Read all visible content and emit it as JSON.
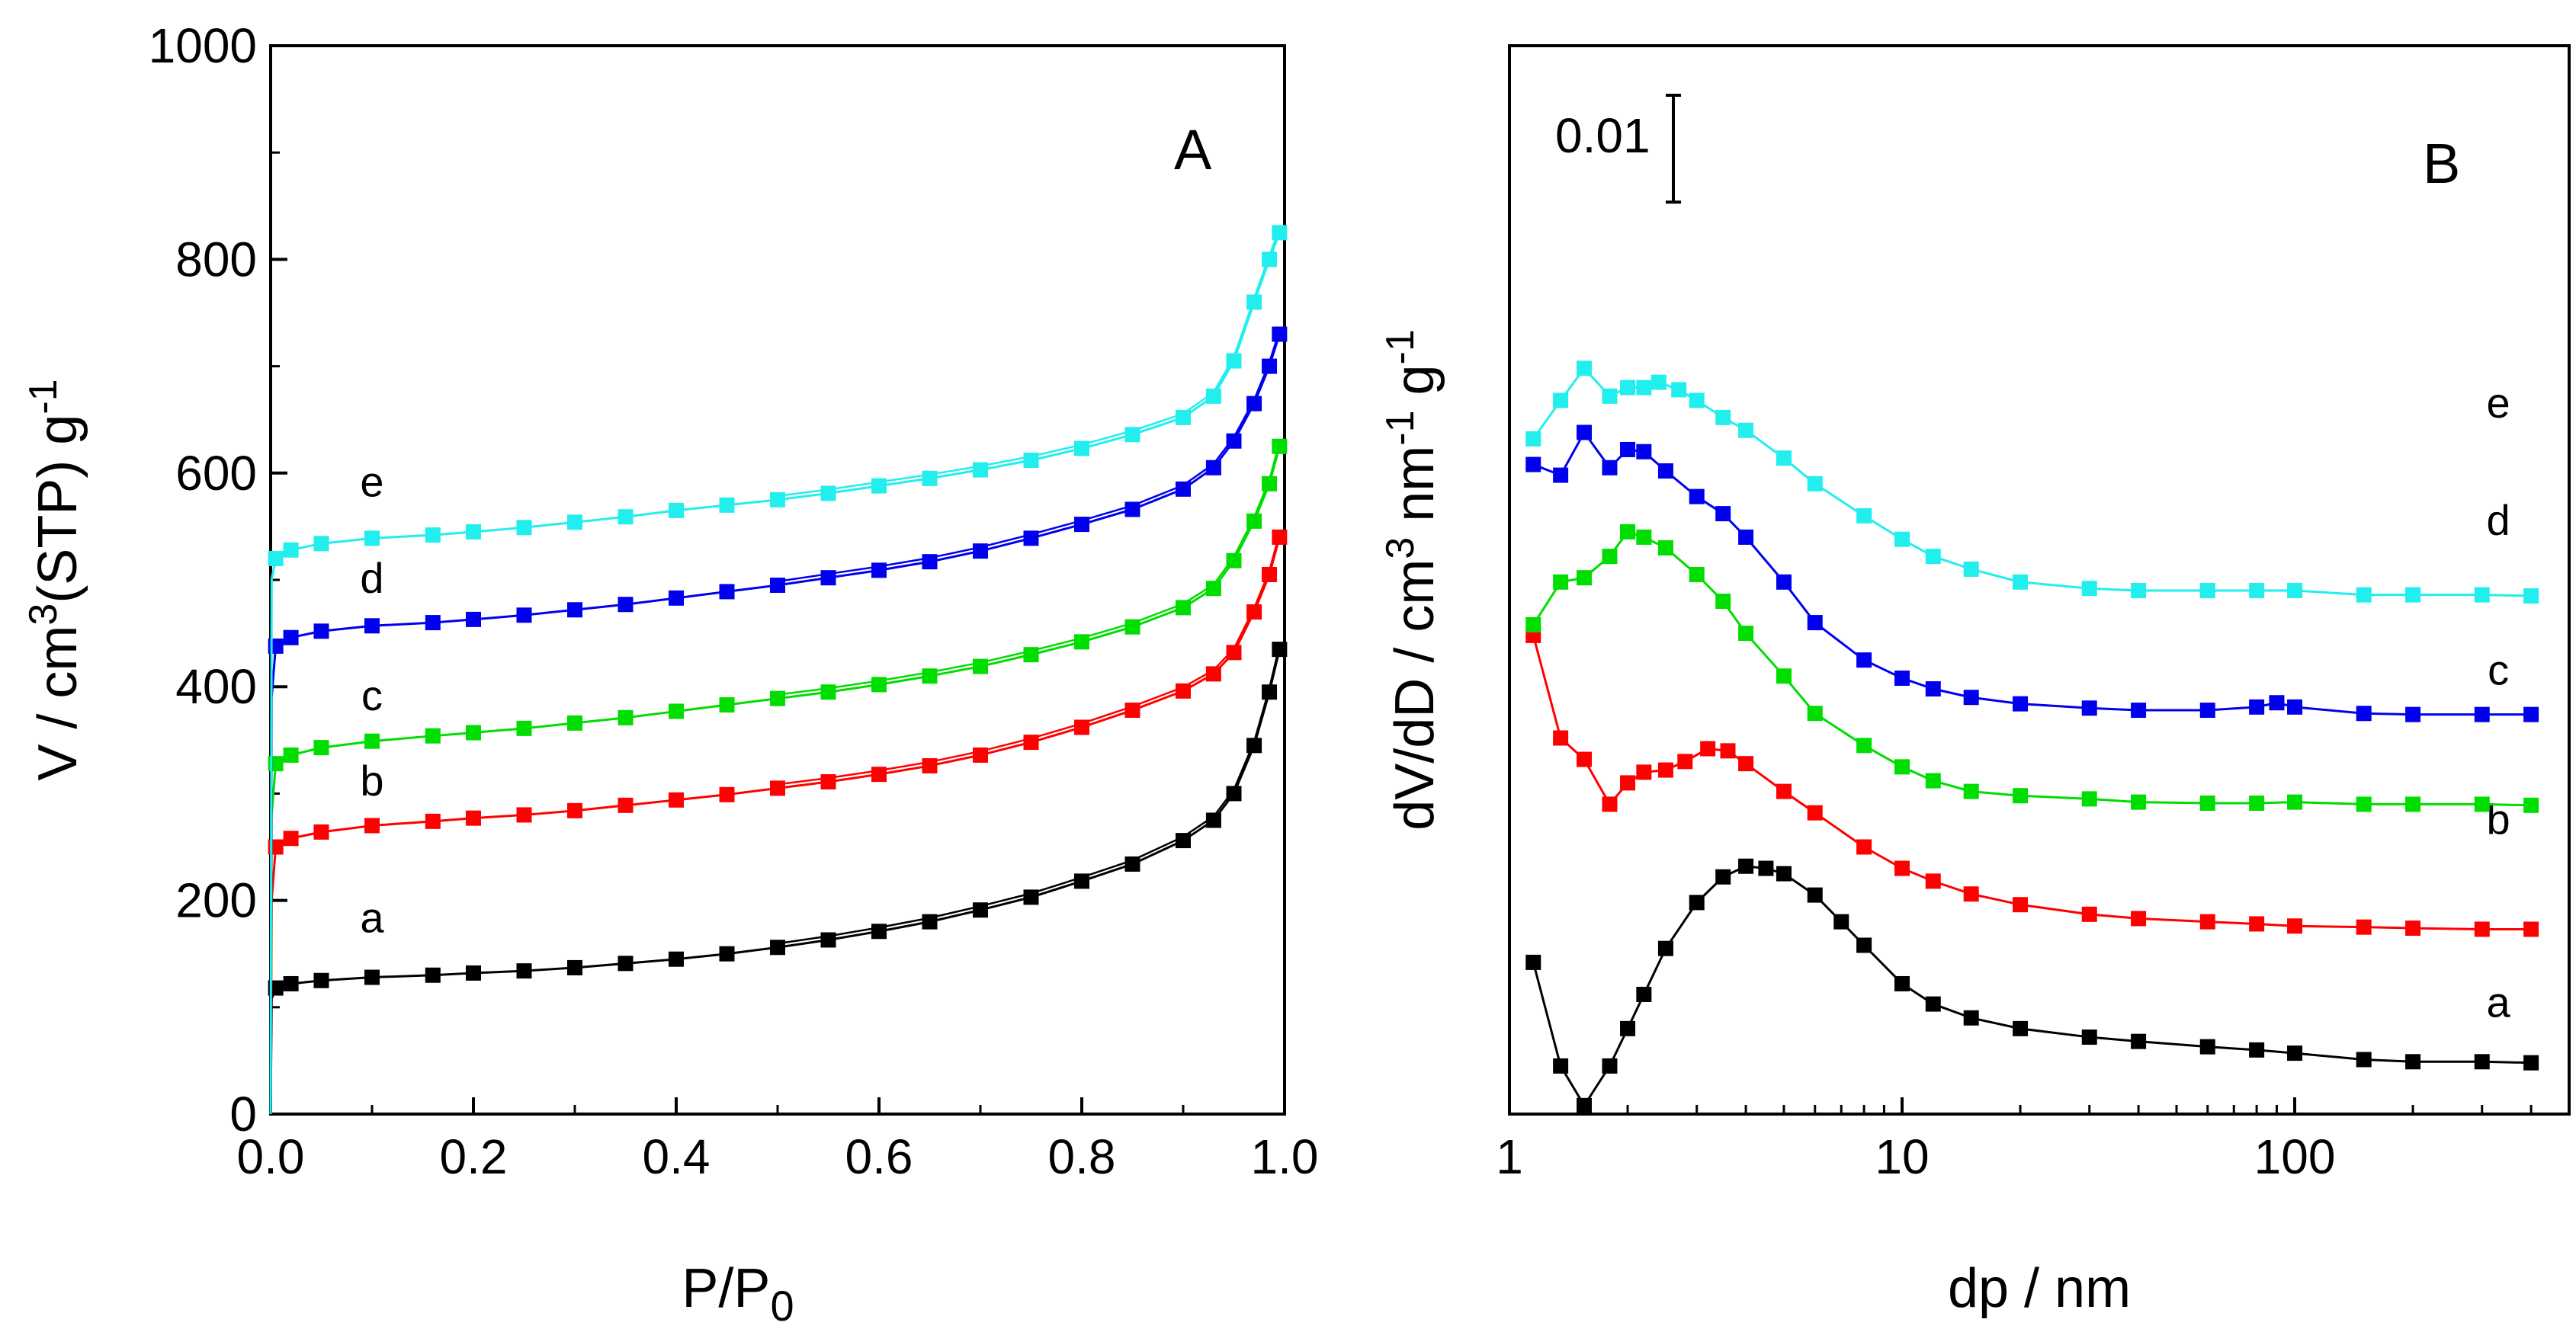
{
  "chart_data": [
    {
      "panel": "A",
      "type": "line",
      "xlabel": "P/P",
      "xlabel_sub": "0",
      "ylabel": "V / cm",
      "ylabel_sup": "3",
      "ylabel_mid": "(STP) g",
      "ylabel_sup2": "-1",
      "xlim": [
        0,
        1.0
      ],
      "ylim": [
        0,
        1000
      ],
      "xticks": [
        "0.0",
        "0.2",
        "0.4",
        "0.6",
        "0.8",
        "1.0"
      ],
      "yticks": [
        "0",
        "200",
        "400",
        "600",
        "800",
        "1000"
      ],
      "series": [
        {
          "name": "a",
          "color": "#000000",
          "label_at": [
            0.1,
            170
          ],
          "x": [
            0.001,
            0.005,
            0.02,
            0.05,
            0.1,
            0.16,
            0.2,
            0.25,
            0.3,
            0.35,
            0.4,
            0.45,
            0.5,
            0.55,
            0.6,
            0.65,
            0.7,
            0.75,
            0.8,
            0.85,
            0.9,
            0.93,
            0.95,
            0.97,
            0.985,
            0.995
          ],
          "y": [
            108,
            118,
            122,
            125,
            128,
            130,
            132,
            134,
            137,
            141,
            145,
            150,
            156,
            163,
            171,
            180,
            191,
            203,
            218,
            234,
            256,
            275,
            300,
            345,
            395,
            435
          ]
        },
        {
          "name": "b",
          "color": "#ff0000",
          "label_at": [
            0.1,
            298
          ],
          "x": [
            0.001,
            0.005,
            0.02,
            0.05,
            0.1,
            0.16,
            0.2,
            0.25,
            0.3,
            0.35,
            0.4,
            0.45,
            0.5,
            0.55,
            0.6,
            0.65,
            0.7,
            0.75,
            0.8,
            0.85,
            0.9,
            0.93,
            0.95,
            0.97,
            0.985,
            0.995
          ],
          "y": [
            200,
            250,
            258,
            264,
            270,
            274,
            277,
            280,
            284,
            289,
            294,
            299,
            305,
            311,
            318,
            326,
            336,
            348,
            362,
            378,
            396,
            412,
            432,
            470,
            505,
            540
          ]
        },
        {
          "name": "c",
          "color": "#00dd00",
          "label_at": [
            0.1,
            378
          ],
          "x": [
            0.001,
            0.005,
            0.02,
            0.05,
            0.1,
            0.16,
            0.2,
            0.25,
            0.3,
            0.35,
            0.4,
            0.45,
            0.5,
            0.55,
            0.6,
            0.65,
            0.7,
            0.75,
            0.8,
            0.85,
            0.9,
            0.93,
            0.95,
            0.97,
            0.985,
            0.995
          ],
          "y": [
            280,
            328,
            336,
            343,
            349,
            354,
            357,
            361,
            366,
            371,
            377,
            383,
            389,
            395,
            402,
            410,
            419,
            430,
            442,
            456,
            474,
            492,
            518,
            555,
            590,
            625
          ]
        },
        {
          "name": "d",
          "color": "#0000ee",
          "label_at": [
            0.1,
            488
          ],
          "x": [
            0.001,
            0.005,
            0.02,
            0.05,
            0.1,
            0.16,
            0.2,
            0.25,
            0.3,
            0.35,
            0.4,
            0.45,
            0.5,
            0.55,
            0.6,
            0.65,
            0.7,
            0.75,
            0.8,
            0.85,
            0.9,
            0.93,
            0.95,
            0.97,
            0.985,
            0.995
          ],
          "y": [
            390,
            438,
            446,
            452,
            457,
            460,
            463,
            467,
            472,
            477,
            483,
            489,
            495,
            502,
            509,
            517,
            527,
            539,
            552,
            566,
            585,
            605,
            630,
            665,
            700,
            730
          ]
        },
        {
          "name": "e",
          "color": "#22eeee",
          "label_at": [
            0.1,
            578
          ],
          "x": [
            0.001,
            0.005,
            0.02,
            0.05,
            0.1,
            0.16,
            0.2,
            0.25,
            0.3,
            0.35,
            0.4,
            0.45,
            0.5,
            0.55,
            0.6,
            0.65,
            0.7,
            0.75,
            0.8,
            0.85,
            0.9,
            0.93,
            0.95,
            0.97,
            0.985,
            0.995
          ],
          "y": [
            500,
            520,
            528,
            534,
            539,
            542,
            545,
            549,
            554,
            559,
            565,
            570,
            575,
            581,
            588,
            595,
            603,
            612,
            623,
            636,
            652,
            672,
            705,
            760,
            800,
            825
          ]
        }
      ]
    },
    {
      "panel": "B",
      "type": "line",
      "xscale": "log",
      "xlabel": "dp / nm",
      "ylabel": "dV/dD / cm",
      "ylabel_sup": "3",
      "ylabel_mid": " nm",
      "ylabel_sup2": "-1",
      "ylabel_end": " g",
      "ylabel_sup3": "-1",
      "xlim": [
        1,
        500
      ],
      "ylim": [
        0,
        0.1
      ],
      "xticks": [
        "1",
        "10",
        "100"
      ],
      "scale_bar_label": "0.01",
      "scale_bar_value": 0.01,
      "series": [
        {
          "name": "a",
          "color": "#000000",
          "label_at": [
            330,
            0.0091
          ],
          "x": [
            1.15,
            1.35,
            1.55,
            1.8,
            2.0,
            2.2,
            2.5,
            3.0,
            3.5,
            4.0,
            4.5,
            5.0,
            6.0,
            7.0,
            8.0,
            10,
            12,
            15,
            20,
            30,
            40,
            60,
            80,
            100,
            150,
            200,
            300,
            400
          ],
          "y": [
            0.0142,
            0.0045,
            0.0008,
            0.0045,
            0.008,
            0.0112,
            0.0155,
            0.0198,
            0.0222,
            0.0232,
            0.023,
            0.0225,
            0.0205,
            0.018,
            0.0158,
            0.0122,
            0.0103,
            0.009,
            0.008,
            0.0072,
            0.0068,
            0.0063,
            0.006,
            0.0057,
            0.0051,
            0.0049,
            0.0049,
            0.0048
          ]
        },
        {
          "name": "b",
          "color": "#ff0000",
          "label_at": [
            330,
            0.0262
          ],
          "x": [
            1.15,
            1.35,
            1.55,
            1.8,
            2.0,
            2.2,
            2.5,
            2.8,
            3.2,
            3.6,
            4.0,
            5.0,
            6.0,
            8.0,
            10,
            12,
            15,
            20,
            30,
            40,
            60,
            80,
            100,
            150,
            200,
            300,
            400
          ],
          "y": [
            0.0448,
            0.0352,
            0.0332,
            0.029,
            0.031,
            0.032,
            0.0322,
            0.033,
            0.0342,
            0.034,
            0.0328,
            0.0302,
            0.0282,
            0.025,
            0.023,
            0.0218,
            0.0206,
            0.0196,
            0.0187,
            0.0183,
            0.018,
            0.0178,
            0.0176,
            0.0175,
            0.0174,
            0.0173,
            0.0173
          ]
        },
        {
          "name": "c",
          "color": "#00dd00",
          "label_at": [
            330,
            0.0402
          ],
          "x": [
            1.15,
            1.35,
            1.55,
            1.8,
            2.0,
            2.2,
            2.5,
            3.0,
            3.5,
            4.0,
            5.0,
            6.0,
            8.0,
            10,
            12,
            15,
            20,
            30,
            40,
            60,
            80,
            100,
            150,
            200,
            300,
            400
          ],
          "y": [
            0.0458,
            0.0498,
            0.0502,
            0.0522,
            0.0545,
            0.054,
            0.053,
            0.0505,
            0.048,
            0.045,
            0.041,
            0.0375,
            0.0345,
            0.0325,
            0.0312,
            0.0302,
            0.0298,
            0.0295,
            0.0292,
            0.0291,
            0.0291,
            0.0292,
            0.029,
            0.029,
            0.029,
            0.0289
          ]
        },
        {
          "name": "d",
          "color": "#0000ee",
          "label_at": [
            330,
            0.0542
          ],
          "x": [
            1.15,
            1.35,
            1.55,
            1.8,
            2.0,
            2.2,
            2.5,
            3.0,
            3.5,
            4.0,
            5.0,
            6.0,
            8.0,
            10,
            12,
            15,
            20,
            30,
            40,
            60,
            80,
            90,
            100,
            150,
            200,
            300,
            400
          ],
          "y": [
            0.0608,
            0.0598,
            0.0638,
            0.0605,
            0.0622,
            0.062,
            0.0602,
            0.0578,
            0.0562,
            0.054,
            0.0498,
            0.046,
            0.0425,
            0.0408,
            0.0398,
            0.039,
            0.0384,
            0.038,
            0.0378,
            0.0378,
            0.0381,
            0.0385,
            0.0381,
            0.0375,
            0.0374,
            0.0374,
            0.0374
          ]
        },
        {
          "name": "e",
          "color": "#22eeee",
          "label_at": [
            330,
            0.0652
          ],
          "x": [
            1.15,
            1.35,
            1.55,
            1.8,
            2.0,
            2.2,
            2.4,
            2.7,
            3.0,
            3.5,
            4.0,
            5.0,
            6.0,
            8.0,
            10,
            12,
            15,
            20,
            30,
            40,
            60,
            80,
            100,
            150,
            200,
            300,
            400
          ],
          "y": [
            0.0632,
            0.0668,
            0.0698,
            0.0672,
            0.068,
            0.068,
            0.0685,
            0.0678,
            0.0668,
            0.0652,
            0.064,
            0.0614,
            0.059,
            0.056,
            0.0538,
            0.0522,
            0.051,
            0.0498,
            0.0492,
            0.049,
            0.049,
            0.049,
            0.049,
            0.0486,
            0.0486,
            0.0486,
            0.0485
          ]
        }
      ]
    }
  ]
}
